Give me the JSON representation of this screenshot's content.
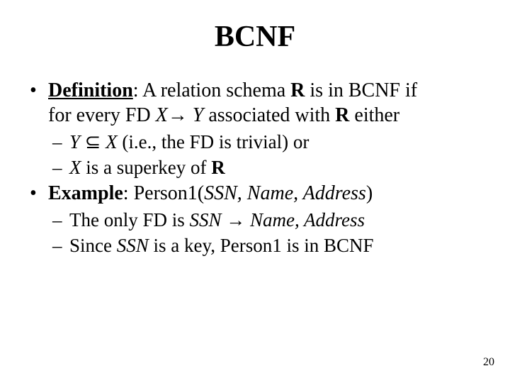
{
  "title": "BCNF",
  "definition": {
    "label": "Definition",
    "txt_a": ": A relation schema ",
    "R": "R",
    "txt_b": " is in BCNF if",
    "txt_c": "for every FD ",
    "X": "X",
    "arrow": "→",
    "sp": " ",
    "Y": "Y",
    "txt_d": " associated with ",
    "txt_e": " either"
  },
  "cond1": {
    "Y": "Y",
    "subset": " ⊆  ",
    "X": "X",
    "rest": "  (i.e., the FD is trivial) or"
  },
  "cond2": {
    "X": "X",
    "txt_a": " is a superkey of ",
    "R": "R"
  },
  "example": {
    "label": "Example",
    "colon": ":  ",
    "rel": "Person1",
    "open": "(",
    "attrs": "SSN, Name, Address",
    "close": ")"
  },
  "ex1": {
    "a": "The only FD is ",
    "ssn": "SSN",
    "arrow": " → ",
    "rhs": "Name, Address"
  },
  "ex2": {
    "a": "Since ",
    "ssn": "SSN",
    "b": " is a key, ",
    "rel": "Person1",
    "c": " is in BCNF"
  },
  "page": "20"
}
